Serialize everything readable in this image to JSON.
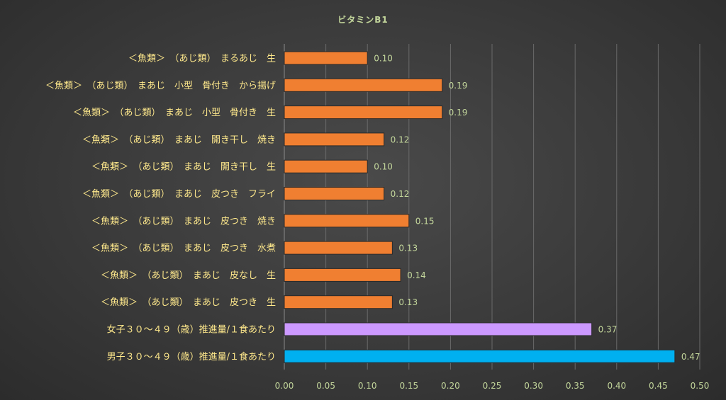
{
  "chart_data": {
    "type": "bar",
    "orientation": "horizontal",
    "title": "ビタミンB1",
    "categories": [
      "＜魚類＞　（あじ類）　まるあじ　生",
      "＜魚類＞　（あじ類）　まあじ　小型　骨付き　から揚げ",
      "＜魚類＞　（あじ類）　まあじ　小型　骨付き　生",
      "＜魚類＞　（あじ類）　まあじ　開き干し　焼き",
      "＜魚類＞　（あじ類）　まあじ　開き干し　生",
      "＜魚類＞　（あじ類）　まあじ　皮つき　フライ",
      "＜魚類＞　（あじ類）　まあじ　皮つき　焼き",
      "＜魚類＞　（あじ類）　まあじ　皮つき　水煮",
      "＜魚類＞　（あじ類）　まあじ　皮なし　生",
      "＜魚類＞　（あじ類）　まあじ　皮つき　生",
      "女子３０～４９（歳）推進量/１食あたり",
      "男子３０～４９（歳）推進量/１食あたり"
    ],
    "values": [
      0.1,
      0.19,
      0.19,
      0.12,
      0.1,
      0.12,
      0.15,
      0.13,
      0.14,
      0.13,
      0.37,
      0.47
    ],
    "data_labels": [
      "0.10",
      "0.19",
      "0.19",
      "0.12",
      "0.10",
      "0.12",
      "0.15",
      "0.13",
      "0.14",
      "0.13",
      "0.37",
      "0.47"
    ],
    "bar_colors": [
      "#f07f31",
      "#f07f31",
      "#f07f31",
      "#f07f31",
      "#f07f31",
      "#f07f31",
      "#f07f31",
      "#f07f31",
      "#f07f31",
      "#f07f31",
      "#cc99ff",
      "#00b0f0"
    ],
    "xlim": [
      0,
      0.5
    ],
    "x_ticks": [
      "0.00",
      "0.05",
      "0.10",
      "0.15",
      "0.20",
      "0.25",
      "0.30",
      "0.35",
      "0.40",
      "0.45",
      "0.50"
    ],
    "grid": true,
    "legend": "none"
  }
}
